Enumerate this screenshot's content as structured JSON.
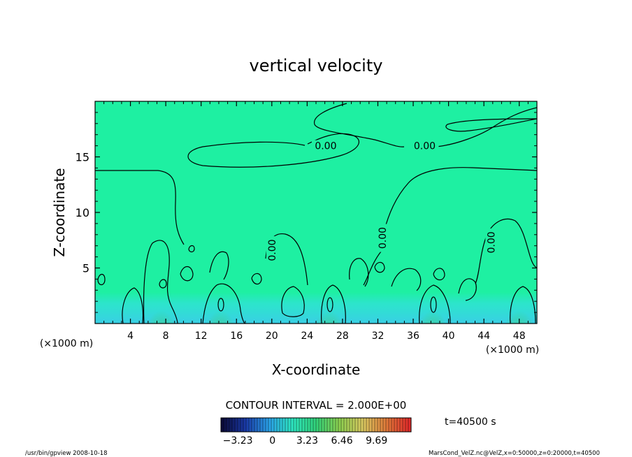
{
  "chart_data": {
    "type": "heatmap",
    "subtype": "contour",
    "title": "vertical velocity",
    "xlabel": "X-coordinate",
    "ylabel": "Z-coordinate",
    "x_unit": "(×1000 m)",
    "y_unit": "(×1000 m)",
    "xlim": [
      0,
      50
    ],
    "ylim": [
      0,
      20
    ],
    "xticks": [
      4,
      8,
      12,
      16,
      20,
      24,
      28,
      32,
      36,
      40,
      44,
      48
    ],
    "yticks": [
      5,
      10,
      15
    ],
    "contour_labels": [
      {
        "text": "0.00",
        "x": 26.1,
        "z": 16.0
      },
      {
        "text": "0.00",
        "x": 37.3,
        "z": 16.0
      },
      {
        "text": "0.00",
        "x": 32.5,
        "z": 7.7
      },
      {
        "text": "0.00",
        "x": 20.0,
        "z": 6.6
      },
      {
        "text": "0.00",
        "x": 44.8,
        "z": 7.3
      }
    ],
    "updraft_cores_x": [
      7.5,
      14.2,
      26.5,
      38.2,
      48.0
    ],
    "contour_interval_text": "CONTOUR INTERVAL = 2.000E+00",
    "time_label": "t=40500 s",
    "colorbar": {
      "min": -4.8,
      "max": 12.9,
      "tick_labels": [
        "−3.23",
        "0",
        "3.23",
        "6.46",
        "9.69"
      ],
      "tick_values": [
        -3.23,
        0,
        3.23,
        6.46,
        9.69
      ],
      "colors": [
        "#0b0b3a",
        "#1a3aa8",
        "#2aa2e8",
        "#2ee6c0",
        "#32d27a",
        "#8ccf50",
        "#d8c860",
        "#e07a3a",
        "#e02a2a"
      ]
    },
    "colors": {
      "background": "#1ef0a2",
      "upwelling": "#3ed24a",
      "downdraft": "#3ad8ec"
    }
  },
  "footer": {
    "left": "/usr/bin/gpview   2008-10-18",
    "right": "MarsCond_VelZ.nc@VelZ,x=0:50000,z=0:20000,t=40500"
  }
}
